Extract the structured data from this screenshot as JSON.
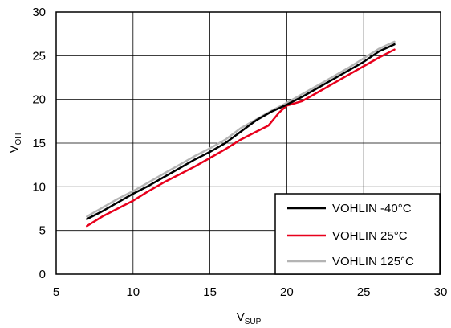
{
  "chart_data": {
    "type": "line",
    "title": "",
    "xlabel": "V",
    "xlabel_sub": "SUP",
    "ylabel": "V",
    "ylabel_sub": "OH",
    "xlim": [
      5,
      30
    ],
    "ylim": [
      0,
      30
    ],
    "xticks": [
      5,
      10,
      15,
      20,
      25,
      30
    ],
    "yticks": [
      0,
      5,
      10,
      15,
      20,
      25,
      30
    ],
    "grid": true,
    "legend_position": "bottom-right",
    "series": [
      {
        "name": "VOHLIN -40°C",
        "color": "#000000",
        "x": [
          7,
          8,
          9,
          10,
          11,
          12,
          13,
          14,
          15,
          16,
          17,
          18,
          19,
          20,
          21,
          22,
          23,
          24,
          25,
          26,
          27
        ],
        "y": [
          6.3,
          7.2,
          8.2,
          9.2,
          10.1,
          11.1,
          12.1,
          13.1,
          14.0,
          15.0,
          16.3,
          17.6,
          18.6,
          19.4,
          20.3,
          21.3,
          22.3,
          23.3,
          24.3,
          25.5,
          26.3
        ]
      },
      {
        "name": "VOHLIN 25°C",
        "color": "#e8001c",
        "x": [
          7,
          8,
          9,
          10,
          11,
          12,
          13,
          14,
          15,
          16,
          17,
          18,
          18.8,
          19.5,
          20,
          21,
          22,
          23,
          24,
          25,
          26,
          27
        ],
        "y": [
          5.5,
          6.6,
          7.5,
          8.4,
          9.5,
          10.5,
          11.4,
          12.3,
          13.3,
          14.3,
          15.4,
          16.3,
          17.0,
          18.5,
          19.3,
          19.8,
          20.8,
          21.8,
          22.8,
          23.8,
          24.8,
          25.7
        ]
      },
      {
        "name": "VOHLIN 125°C",
        "color": "#b4b4b4",
        "x": [
          7,
          8,
          9,
          10,
          11,
          12,
          13,
          14,
          15,
          16,
          17,
          18,
          19,
          20,
          21,
          22,
          23,
          24,
          25,
          26,
          27
        ],
        "y": [
          6.6,
          7.6,
          8.6,
          9.5,
          10.5,
          11.5,
          12.5,
          13.5,
          14.4,
          15.4,
          16.7,
          17.7,
          18.7,
          19.6,
          20.6,
          21.6,
          22.6,
          23.6,
          24.7,
          25.8,
          26.6
        ]
      }
    ]
  }
}
